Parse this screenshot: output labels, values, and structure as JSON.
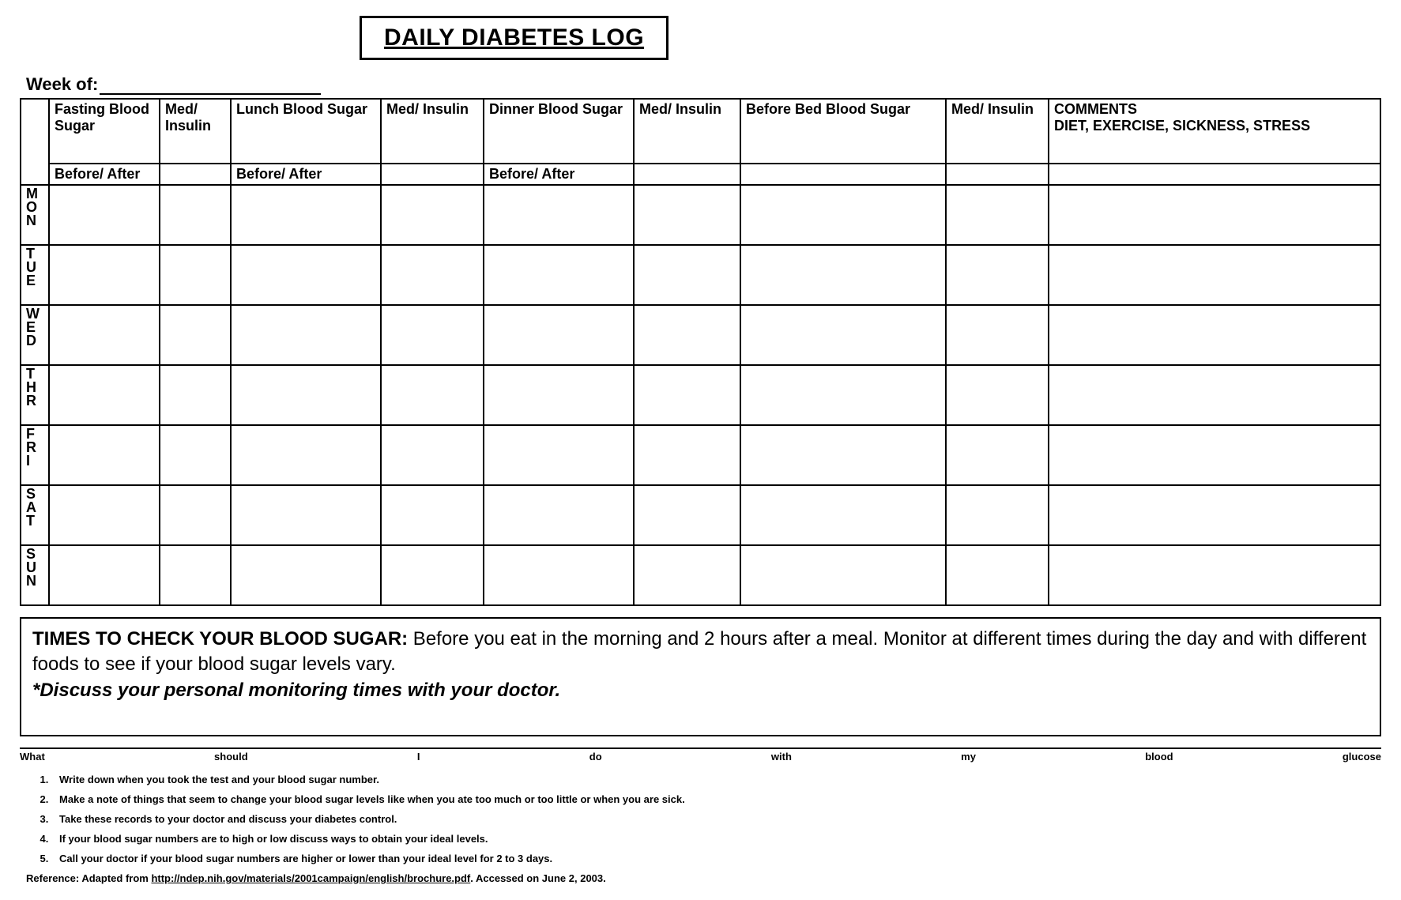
{
  "title": "DAILY DIABETES LOG",
  "week_label": "Week of:",
  "table": {
    "headers": {
      "fasting": "Fasting Blood Sugar",
      "med1": "Med/ Insulin",
      "lunch": "Lunch Blood Sugar",
      "med2": "Med/ Insulin",
      "dinner": "Dinner Blood Sugar",
      "med3": "Med/  Insulin",
      "beforebed": "Before Bed Blood Sugar",
      "med4": "Med/ Insulin",
      "comments_title": "COMMENTS",
      "comments_sub": "DIET, EXERCISE, SICKNESS, STRESS"
    },
    "subheaders": {
      "before_after": "Before/ After"
    },
    "days": [
      "MON",
      "TUE",
      "WED",
      "THR",
      "FRI",
      "SAT",
      "SUN"
    ]
  },
  "info": {
    "lead": "TIMES TO CHECK YOUR BLOOD SUGAR:",
    "body": "  Before you eat in the morning and 2 hours after a meal.  Monitor at different times during the day and with different foods to see if your blood sugar levels vary.",
    "note": "*Discuss your personal monitoring times with your doctor."
  },
  "footer_question": [
    "What",
    "should",
    "I",
    "do",
    "with",
    "my",
    "blood",
    "glucose"
  ],
  "instructions": [
    "Write down when you took the test and your blood sugar number.",
    "Make a note of things that seem to change your blood sugar levels like when you ate too much or too little or when you are sick.",
    "Take these records to your doctor and discuss your diabetes control.",
    "If your blood sugar numbers are to high or low discuss ways to obtain your ideal levels.",
    "Call your doctor if your blood sugar numbers are higher or lower than your ideal level for 2 to 3 days."
  ],
  "reference": {
    "label": "Reference:",
    "text": "  Adapted from ",
    "link": "http://ndep.nih.gov/materials/2001campaign/english/brochure.pdf",
    "accessed": ". Accessed on June 2, 2003."
  },
  "colors": {
    "text": "#000000",
    "background": "#ffffff",
    "border": "#000000"
  }
}
